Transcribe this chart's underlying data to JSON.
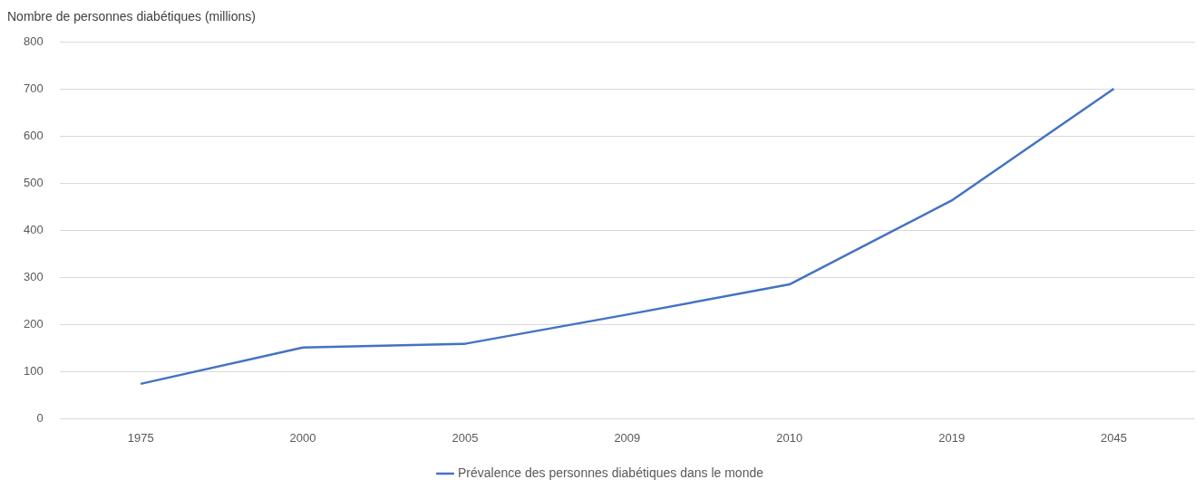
{
  "chart_data": {
    "type": "line",
    "ylabel": "Nombre de personnes diabétiques (millions)",
    "categories": [
      "1975",
      "2000",
      "2005",
      "2009",
      "2010",
      "2019",
      "2045"
    ],
    "series": [
      {
        "name": "Prévalence des personnes diabétiques dans le monde",
        "color": "#4472c4",
        "values": [
          74,
          151,
          159,
          221,
          285,
          463,
          700
        ]
      }
    ],
    "ylim": [
      0,
      800
    ],
    "yticks": [
      0,
      100,
      200,
      300,
      400,
      500,
      600,
      700,
      800
    ],
    "grid": "y",
    "legend": "bottom",
    "marker": "none",
    "line_style": "solid"
  }
}
